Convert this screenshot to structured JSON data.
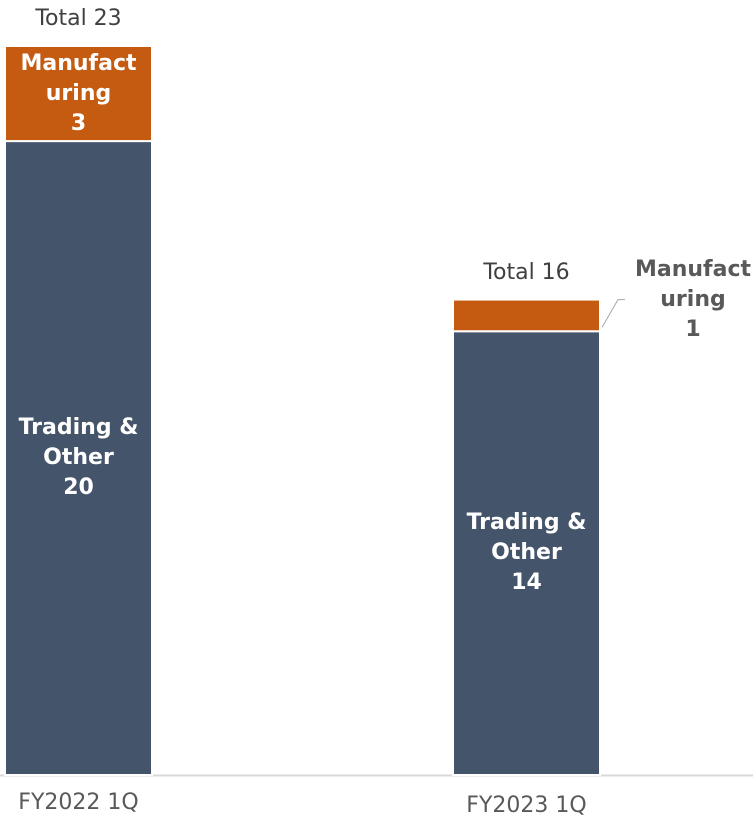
{
  "chart_data": {
    "type": "stacked-bar",
    "categories": [
      "FY2022 1Q",
      "FY2023 1Q"
    ],
    "series": [
      {
        "name": "Trading & Other",
        "color": "#44546a",
        "values": [
          20,
          14
        ]
      },
      {
        "name": "Manufacturing",
        "color": "#c55a11",
        "values": [
          3,
          1
        ]
      }
    ],
    "totals": {
      "values": [
        23,
        16
      ],
      "value_labels": [
        "Total 23",
        "Total 16"
      ]
    }
  }
}
